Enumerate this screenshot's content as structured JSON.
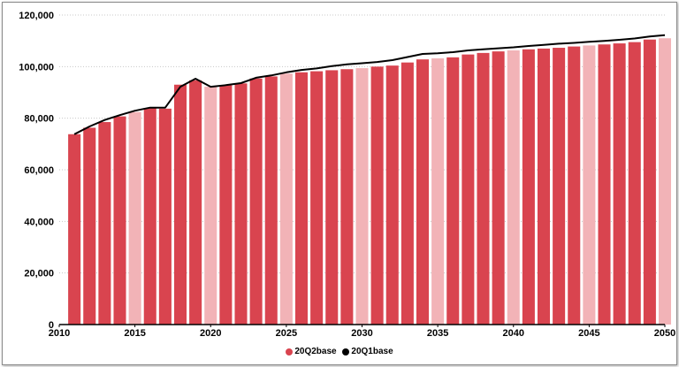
{
  "chart_data": {
    "type": "bar",
    "title": "",
    "xlabel": "",
    "ylabel": "",
    "ylim": [
      0,
      120000
    ],
    "xlim": [
      2010,
      2050
    ],
    "y_ticks": [
      "0",
      "20,000",
      "40,000",
      "60,000",
      "80,000",
      "100,000",
      "120,000"
    ],
    "y_tick_values": [
      0,
      20000,
      40000,
      60000,
      80000,
      100000,
      120000
    ],
    "x_ticks": [
      "2010",
      "2015",
      "2020",
      "2025",
      "2030",
      "2035",
      "2040",
      "2045",
      "2050"
    ],
    "x_tick_values": [
      2010,
      2015,
      2020,
      2025,
      2030,
      2035,
      2040,
      2045,
      2050
    ],
    "grid": "horizontal dotted",
    "legend_position": "bottom",
    "categories": [
      2011,
      2012,
      2013,
      2014,
      2015,
      2016,
      2017,
      2018,
      2019,
      2020,
      2021,
      2022,
      2023,
      2024,
      2025,
      2026,
      2027,
      2028,
      2029,
      2030,
      2031,
      2032,
      2033,
      2034,
      2035,
      2036,
      2037,
      2038,
      2039,
      2040,
      2041,
      2042,
      2043,
      2044,
      2045,
      2046,
      2047,
      2048,
      2049,
      2050
    ],
    "series": [
      {
        "name": "20Q2base",
        "type": "bar",
        "color": "#d9444f",
        "highlight_color": "#f2b3b7",
        "highlight_years": [
          2015,
          2020,
          2025,
          2030,
          2035,
          2040,
          2045,
          2050
        ],
        "values": [
          73800,
          76300,
          78500,
          80700,
          82400,
          84000,
          83700,
          93000,
          94700,
          92200,
          92800,
          93500,
          95400,
          96200,
          97300,
          97800,
          98200,
          98600,
          99000,
          99400,
          100000,
          100400,
          101600,
          102800,
          103200,
          103600,
          104700,
          105300,
          105900,
          106300,
          106700,
          107000,
          107300,
          107800,
          108200,
          108600,
          109000,
          109500,
          110500,
          111000
        ]
      },
      {
        "name": "20Q1base",
        "type": "line",
        "color": "#000000",
        "values": [
          73800,
          76800,
          79300,
          81200,
          82900,
          84100,
          84100,
          92200,
          95300,
          92200,
          92800,
          93600,
          95700,
          96600,
          97800,
          98700,
          99300,
          100200,
          100900,
          101300,
          101800,
          102500,
          103700,
          104900,
          105200,
          105600,
          106300,
          106700,
          107100,
          107500,
          108000,
          108400,
          108900,
          109200,
          109600,
          110000,
          110400,
          110900,
          111700,
          112200
        ]
      }
    ]
  }
}
